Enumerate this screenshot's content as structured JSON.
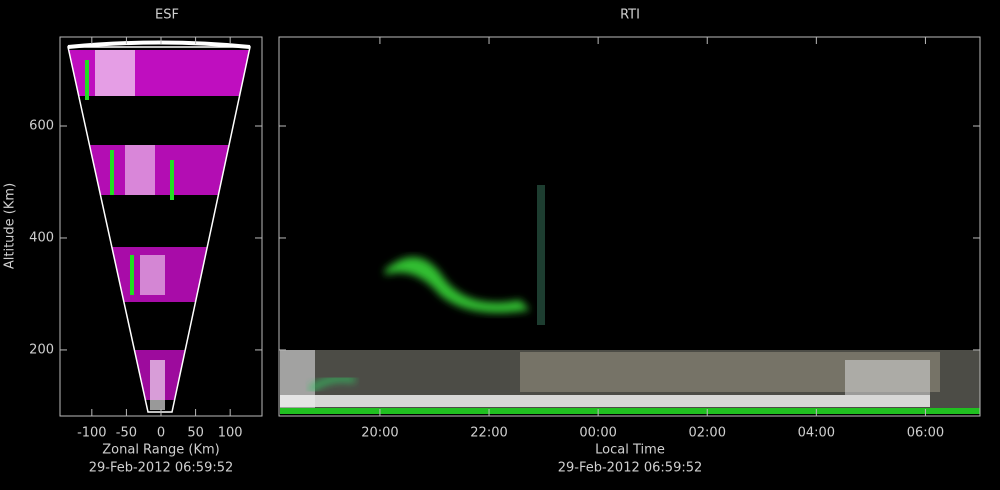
{
  "chart_data": [
    {
      "type": "image",
      "title": "ESF",
      "xlabel": "Zonal Range (Km)",
      "ylabel": "Altitude (Km)",
      "timestamp": "29-Feb-2012 06:59:52",
      "xlim": [
        -146,
        146
      ],
      "xticks": [
        -100,
        -50,
        0,
        50,
        100
      ],
      "ylim": [
        82,
        759
      ],
      "yticks": [
        200,
        400,
        600
      ]
    },
    {
      "type": "image",
      "title": "RTI",
      "xlabel": "Local Time",
      "timestamp": "29-Feb-2012 06:59:52",
      "xlim": [
        18.15,
        31.0
      ],
      "xticks": [
        {
          "value": 20,
          "label": "20:00"
        },
        {
          "value": 22,
          "label": "22:00"
        },
        {
          "value": 24,
          "label": "00:00"
        },
        {
          "value": 26,
          "label": "02:00"
        },
        {
          "value": 28,
          "label": "04:00"
        },
        {
          "value": 30,
          "label": "06:00"
        }
      ],
      "ylim": [
        82,
        759
      ],
      "yticks": [
        200,
        400,
        600
      ]
    }
  ]
}
